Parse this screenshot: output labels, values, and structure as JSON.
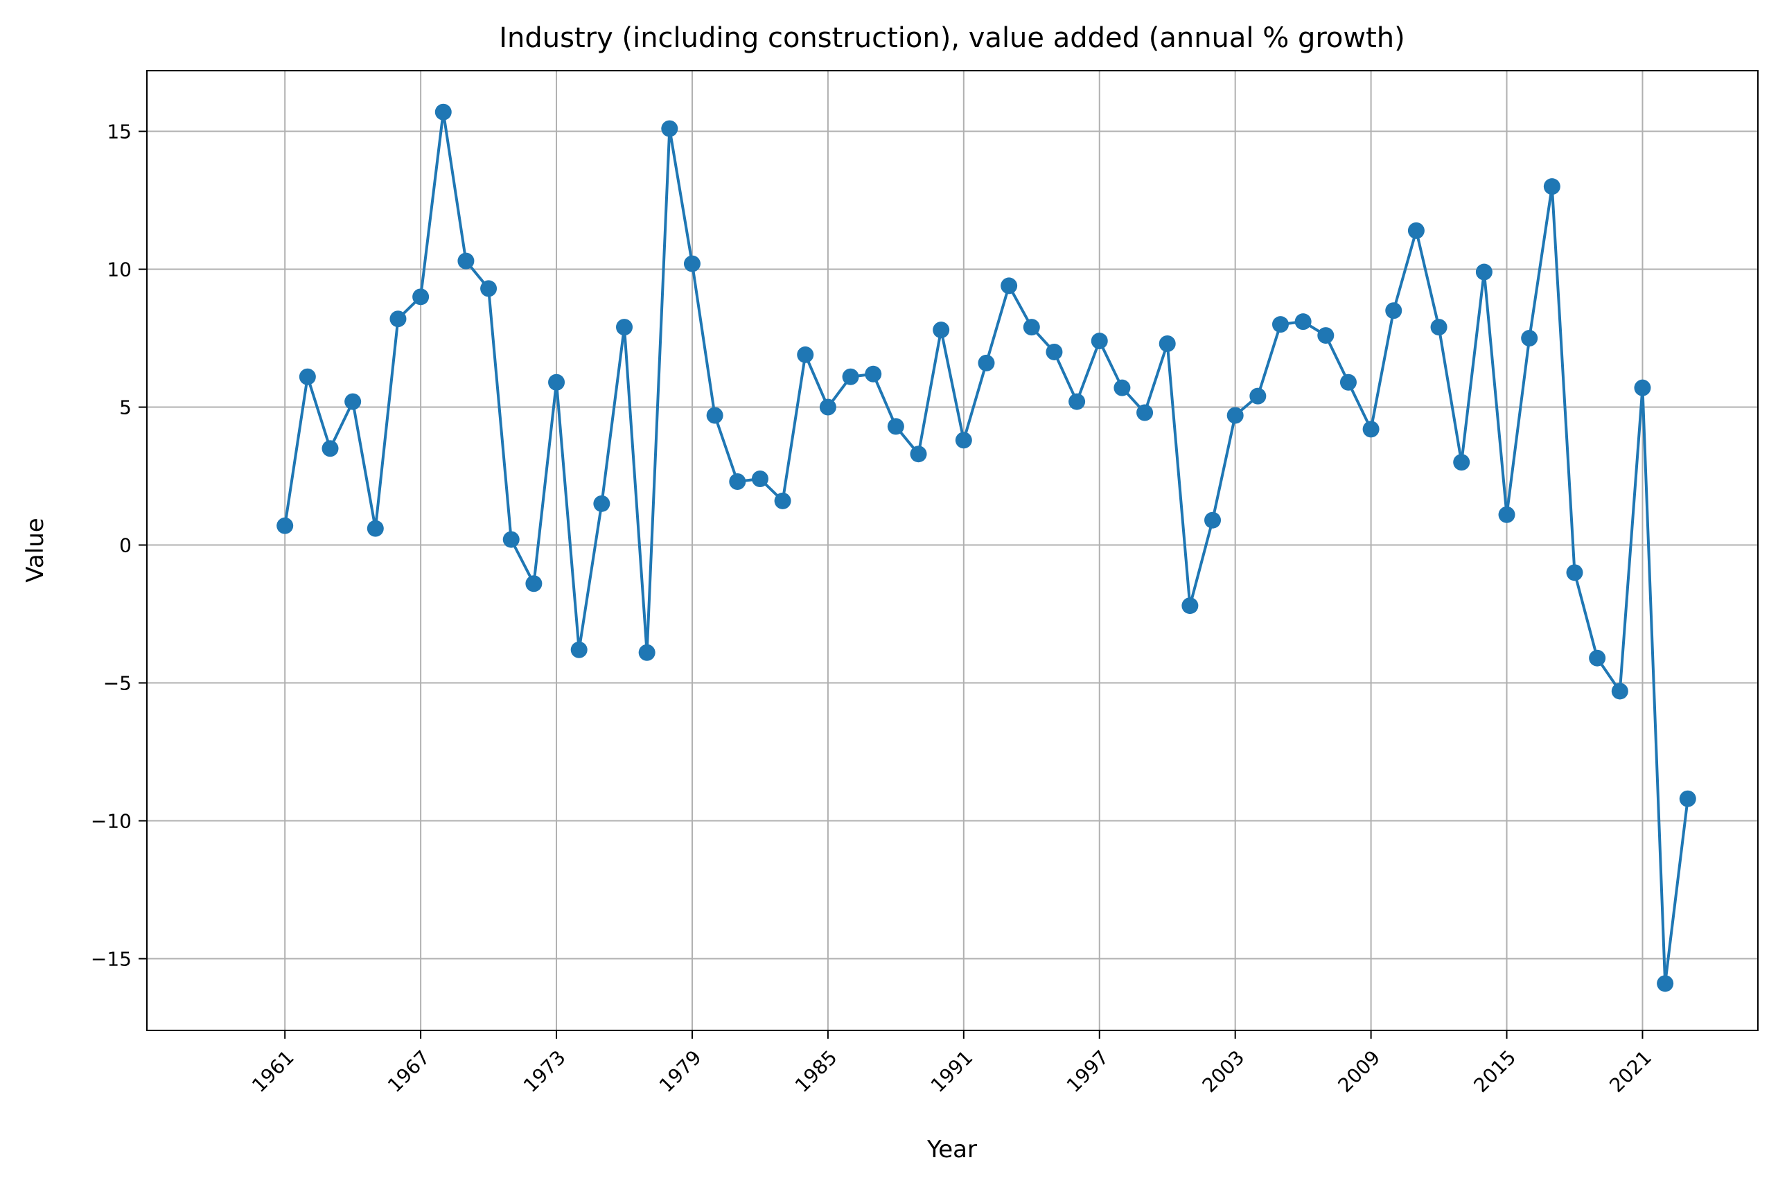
{
  "chart_data": {
    "type": "line",
    "title": "Industry (including construction), value added (annual % growth)",
    "xlabel": "Year",
    "ylabel": "Value",
    "xlim": [
      1954.9,
      2026.1
    ],
    "ylim": [
      -17.6,
      17.2
    ],
    "xticks": [
      1961,
      1967,
      1973,
      1979,
      1985,
      1991,
      1997,
      2003,
      2009,
      2015,
      2021
    ],
    "yticks": [
      -15,
      -10,
      -5,
      0,
      5,
      10,
      15
    ],
    "grid": true,
    "color": "#1f77b4",
    "x": [
      1961,
      1962,
      1963,
      1964,
      1965,
      1966,
      1967,
      1968,
      1969,
      1970,
      1971,
      1972,
      1973,
      1974,
      1975,
      1976,
      1977,
      1978,
      1979,
      1980,
      1981,
      1982,
      1983,
      1984,
      1985,
      1986,
      1987,
      1988,
      1989,
      1990,
      1991,
      1992,
      1993,
      1994,
      1995,
      1996,
      1997,
      1998,
      1999,
      2000,
      2001,
      2002,
      2003,
      2004,
      2005,
      2006,
      2007,
      2008,
      2009,
      2010,
      2011,
      2012,
      2013,
      2014,
      2015,
      2016,
      2017,
      2018,
      2019,
      2020,
      2021,
      2022,
      2023
    ],
    "values": [
      0.7,
      6.1,
      3.5,
      5.2,
      0.6,
      8.2,
      9.0,
      15.7,
      10.3,
      9.3,
      0.2,
      -1.4,
      5.9,
      -3.8,
      1.5,
      7.9,
      -3.9,
      15.1,
      10.2,
      4.7,
      2.3,
      2.4,
      1.6,
      6.9,
      5.0,
      6.1,
      6.2,
      4.3,
      3.3,
      7.8,
      3.8,
      6.6,
      9.4,
      7.9,
      7.0,
      5.2,
      7.4,
      5.7,
      4.8,
      7.3,
      -2.2,
      0.9,
      4.7,
      5.4,
      8.0,
      8.1,
      7.6,
      5.9,
      4.2,
      8.5,
      11.4,
      7.9,
      3.0,
      9.9,
      1.1,
      7.5,
      13.0,
      -1.0,
      -4.1,
      -5.3,
      5.7,
      -15.9,
      -9.2
    ]
  }
}
